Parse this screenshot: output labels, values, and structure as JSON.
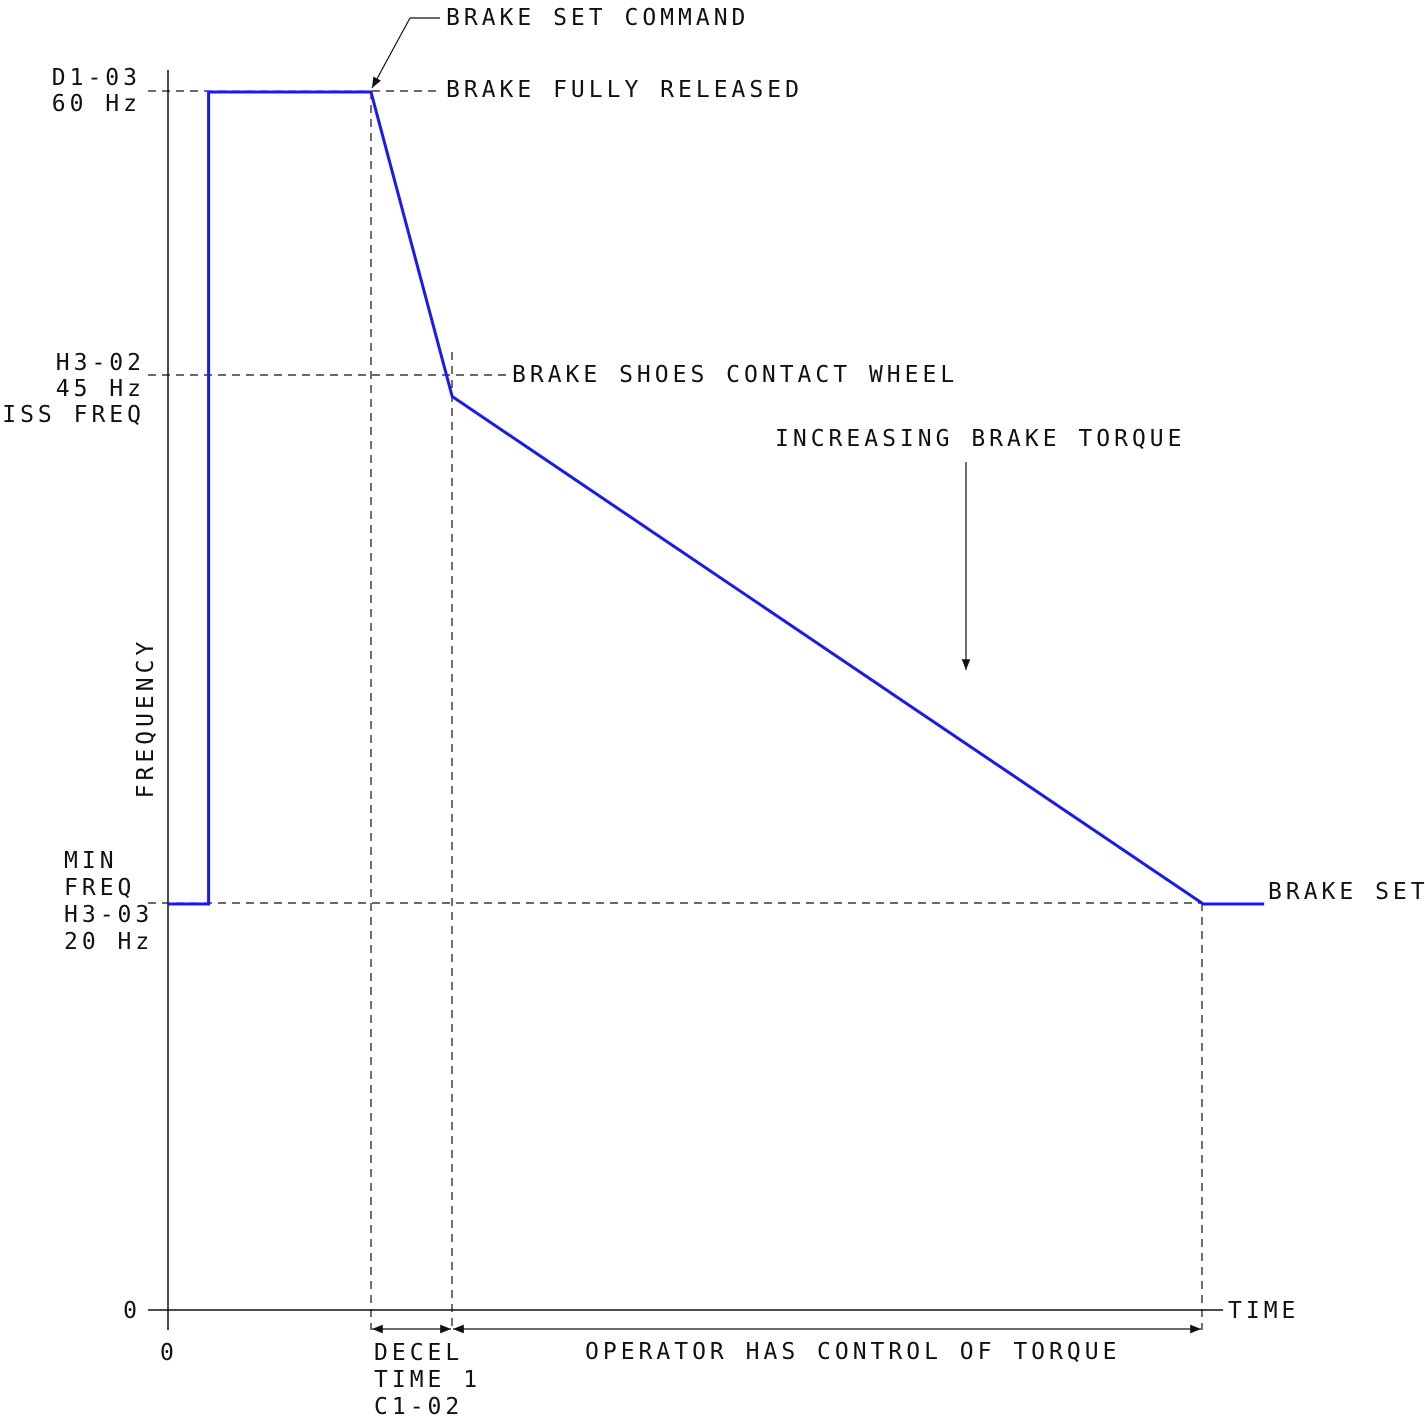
{
  "chart_data": {
    "type": "line",
    "title": "",
    "xlabel": "TIME",
    "ylabel": "FREQUENCY",
    "x_tick_labels": [
      "0"
    ],
    "y_tick_labels": [
      {
        "value": 0,
        "lines": [
          "0"
        ]
      },
      {
        "value": 20,
        "lines": [
          "MIN",
          "FREQ",
          "H3-03",
          "20 Hz"
        ]
      },
      {
        "value": 45,
        "lines": [
          "H3-02",
          "45 Hz",
          "KISS FREQ"
        ]
      },
      {
        "value": 60,
        "lines": [
          "D1-03",
          "60 Hz"
        ]
      }
    ],
    "ylim": [
      0,
      60
    ],
    "grid": false,
    "series": [
      {
        "color": "#1a1aee",
        "points": [
          {
            "x": 0.0,
            "y": 20
          },
          {
            "x": 0.4,
            "y": 20
          },
          {
            "x": 0.4,
            "y": 60
          },
          {
            "x": 2.0,
            "y": 60
          },
          {
            "x": 2.8,
            "y": 45
          },
          {
            "x": 10.2,
            "y": 20
          },
          {
            "x": 10.8,
            "y": 20
          }
        ]
      }
    ],
    "annotations": {
      "brake_set_command": "BRAKE SET COMMAND",
      "brake_fully_released": "BRAKE FULLY RELEASED",
      "brake_shoes_contact": "BRAKE SHOES CONTACT WHEEL",
      "increasing_torque": "INCREASING BRAKE TORQUE",
      "brake_set": "BRAKE SET",
      "decel_time": [
        "DECEL",
        "TIME 1",
        "C1-02"
      ],
      "operator_control": "OPERATOR HAS CONTROL OF TORQUE"
    }
  }
}
